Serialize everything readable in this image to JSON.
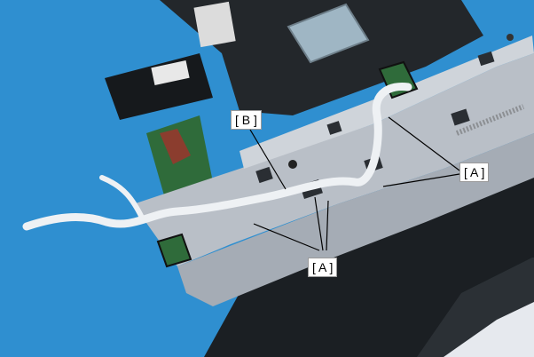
{
  "callouts": {
    "b": "[ B ]",
    "a_right": "[ A ]",
    "a_bottom": "[ A ]"
  },
  "colors": {
    "background": "#2f8fd0",
    "metal_frame": "#b9bfc7",
    "dark_plastic": "#1e2226",
    "flat_cable": "#eef1f4",
    "pcb_green": "#2f6b3a",
    "leader_line": "#000000"
  }
}
